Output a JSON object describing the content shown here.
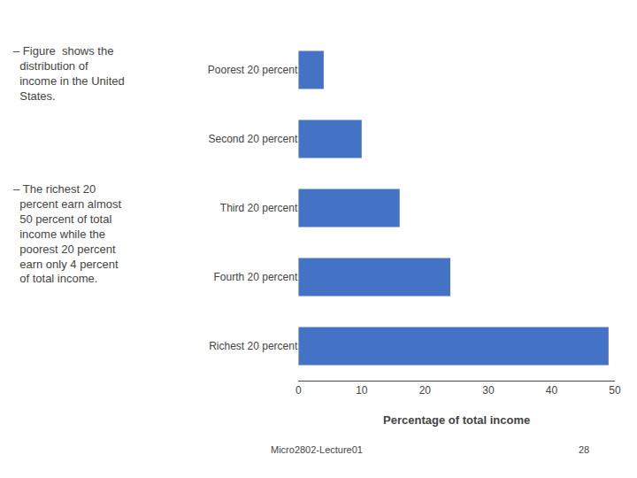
{
  "chart_data": {
    "type": "bar",
    "orientation": "horizontal",
    "categories": [
      "Poorest 20 percent",
      "Second 20 percent",
      "Third 20 percent",
      "Fourth 20 percent",
      "Richest 20 percent"
    ],
    "values": [
      4,
      10,
      16,
      24,
      49
    ],
    "color": "#4472C4",
    "xlabel": "Percentage of total income",
    "xlim": [
      0,
      50
    ],
    "xticks": [
      0,
      10,
      20,
      30,
      40,
      50
    ],
    "grid": false,
    "annotations": [
      "– Figure  shows the\n  distribution of\n  income in the United\n  States.",
      "– The richest 20\n  percent earn almost\n  50 percent of total\n  income while the\n  poorest 20 percent\n  earn only 4 percent\n  of total income.",
      "Micro2802-Lecture01",
      "28"
    ]
  }
}
